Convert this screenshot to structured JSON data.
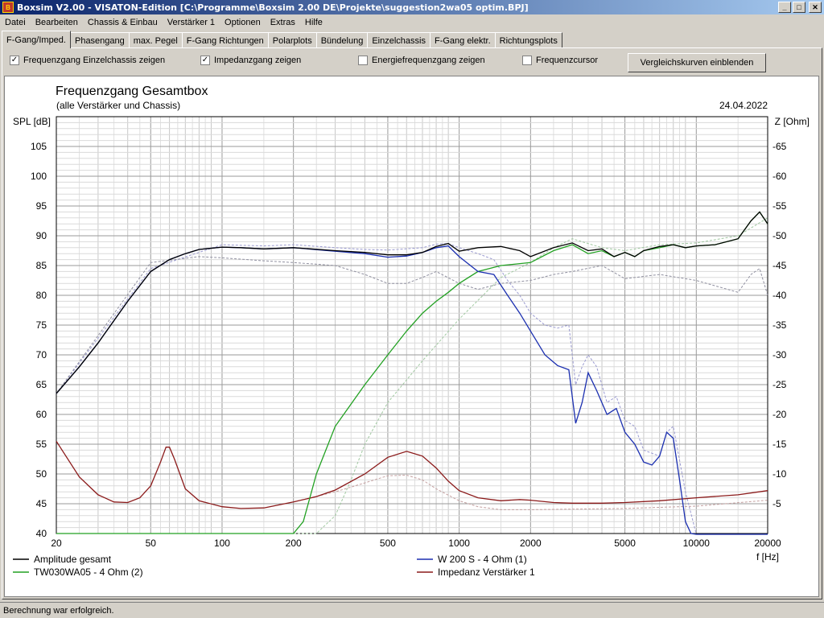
{
  "window": {
    "title": "Boxsim V2.00 - VISATON-Edition [C:\\Programme\\Boxsim 2.00 DE\\Projekte\\suggestion2wa05 optim.BPJ]",
    "minimize": "_",
    "maximize": "□",
    "close": "✕"
  },
  "menu": [
    "Datei",
    "Bearbeiten",
    "Chassis & Einbau",
    "Verstärker 1",
    "Optionen",
    "Extras",
    "Hilfe"
  ],
  "tabs": [
    "F-Gang/Imped.",
    "Phasengang",
    "max. Pegel",
    "F-Gang Richtungen",
    "Polarplots",
    "Bündelung",
    "Einzelchassis",
    "F-Gang elektr.",
    "Richtungsplots"
  ],
  "options": {
    "show_driver_freq": {
      "label": "Frequenzgang Einzelchassis zeigen",
      "checked": true
    },
    "show_impedance": {
      "label": "Impedanzgang zeigen",
      "checked": true
    },
    "show_energy": {
      "label": "Energiefrequenzgang zeigen",
      "checked": false
    },
    "freq_cursor": {
      "label": "Frequenzcursor",
      "checked": false
    },
    "compare_button": "Vergleichskurven einblenden"
  },
  "status": "Berechnung war erfolgreich.",
  "chart_data": {
    "type": "line",
    "title": "Frequenzgang Gesamtbox",
    "subtitle": "(alle Verstärker und Chassis)",
    "date": "24.04.2022",
    "ylabel_left": "SPL [dB]",
    "ylabel_right": "Z [Ohm]",
    "xlabel": "f [Hz]",
    "xscale": "log",
    "xlim": [
      20,
      20000
    ],
    "ylim_left": [
      40,
      110
    ],
    "ylim_right": [
      0,
      70
    ],
    "x_ticks": [
      20,
      50,
      100,
      200,
      500,
      1000,
      2000,
      5000,
      10000,
      20000
    ],
    "y_ticks_left": [
      40,
      45,
      50,
      55,
      60,
      65,
      70,
      75,
      80,
      85,
      90,
      95,
      100,
      105
    ],
    "y_ticks_right": [
      5,
      10,
      15,
      20,
      25,
      30,
      35,
      40,
      45,
      50,
      55,
      60,
      65
    ],
    "grid": true,
    "legend_position": "bottom",
    "series": [
      {
        "name": "Amplitude gesamt",
        "color": "#000000",
        "axis": "left",
        "x": [
          20,
          25,
          30,
          40,
          50,
          60,
          70,
          80,
          100,
          120,
          150,
          200,
          300,
          400,
          500,
          600,
          700,
          800,
          900,
          1000,
          1200,
          1500,
          1800,
          2000,
          2500,
          3000,
          3500,
          4000,
          4500,
          5000,
          5500,
          6000,
          7000,
          8000,
          9000,
          10000,
          12000,
          15000,
          17000,
          18500,
          20000
        ],
        "y": [
          63.5,
          68,
          72,
          79,
          84,
          86,
          87,
          87.7,
          88.1,
          88,
          87.8,
          88,
          87.5,
          87.2,
          86.8,
          86.8,
          87.2,
          88.2,
          88.7,
          87.4,
          88,
          88.2,
          87.5,
          86.5,
          88,
          88.8,
          87.5,
          87.8,
          86.5,
          87.2,
          86.5,
          87.5,
          88.2,
          88.5,
          88,
          88.3,
          88.5,
          89.5,
          92.5,
          94,
          92
        ]
      },
      {
        "name": "W 200 S - 4 Ohm (1)",
        "color": "#1b2fb0",
        "axis": "left",
        "x": [
          20,
          25,
          30,
          40,
          50,
          60,
          70,
          80,
          100,
          120,
          150,
          200,
          300,
          400,
          500,
          600,
          700,
          800,
          900,
          1000,
          1200,
          1400,
          1600,
          1800,
          2000,
          2300,
          2600,
          2900,
          3100,
          3300,
          3500,
          3800,
          4200,
          4600,
          5000,
          5500,
          6000,
          6500,
          7000,
          7500,
          8000,
          8500,
          9000,
          9500,
          10000,
          11000,
          12000,
          15000,
          20000
        ],
        "y": [
          63.5,
          68,
          72,
          79,
          84,
          86,
          87,
          87.7,
          88.1,
          88,
          87.8,
          88,
          87.4,
          87,
          86.4,
          86.6,
          87.2,
          88,
          88.3,
          86.5,
          84,
          83.5,
          80,
          77,
          74,
          70,
          68.2,
          67.5,
          58.5,
          62,
          67,
          64,
          60,
          61,
          57,
          55,
          52,
          51.5,
          53,
          57,
          56,
          49,
          42,
          40,
          39.5,
          38,
          38,
          38,
          38
        ]
      },
      {
        "name": "TW030WA05 - 4 Ohm (2)",
        "color": "#22a122",
        "axis": "left",
        "x": [
          20,
          150,
          200,
          220,
          250,
          300,
          400,
          500,
          600,
          700,
          800,
          900,
          1000,
          1200,
          1500,
          2000,
          2500,
          3000,
          3500,
          4000,
          4500,
          5000,
          5500,
          6000,
          7000,
          8000,
          9000,
          10000,
          12000,
          15000,
          17000,
          18500,
          20000
        ],
        "y": [
          40,
          40,
          40,
          42,
          50,
          58,
          65,
          70,
          74,
          77,
          79,
          80.5,
          82,
          84,
          85,
          85.5,
          87.5,
          88.5,
          87,
          87.5,
          86.5,
          87.2,
          86.5,
          87.5,
          88,
          88.5,
          88,
          88.3,
          88.5,
          89.5,
          92.5,
          94,
          92
        ]
      },
      {
        "name": "Impedanz Verstärker 1",
        "color": "#8b1a1a",
        "axis": "right",
        "x": [
          20,
          25,
          30,
          35,
          40,
          45,
          50,
          55,
          58,
          60,
          63,
          70,
          80,
          100,
          120,
          150,
          200,
          250,
          300,
          400,
          500,
          600,
          700,
          800,
          900,
          1000,
          1200,
          1500,
          1800,
          2000,
          2500,
          3000,
          4000,
          5000,
          7000,
          10000,
          15000,
          20000
        ],
        "y": [
          15.5,
          9.5,
          6.5,
          5.3,
          5.2,
          6,
          8,
          12,
          14.5,
          14.5,
          12.5,
          7.5,
          5.5,
          4.5,
          4.2,
          4.3,
          5.3,
          6.2,
          7.3,
          10,
          12.8,
          13.8,
          13,
          11,
          8.8,
          7.2,
          6,
          5.5,
          5.7,
          5.6,
          5.2,
          5.1,
          5.1,
          5.2,
          5.5,
          6,
          6.5,
          7.2
        ]
      }
    ],
    "comparison_curves": [
      {
        "name": "",
        "color": "#9a9ad0",
        "axis": "left",
        "x": [
          20,
          50,
          100,
          150,
          200,
          300,
          400,
          500,
          700,
          800,
          900,
          1000,
          1200,
          1400,
          1600,
          1800,
          2000,
          2300,
          2600,
          2900,
          3100,
          3300,
          3500,
          3800,
          4200,
          4600,
          5000,
          5500,
          6000,
          7000,
          7500,
          8000,
          9000,
          10000,
          12000,
          20000
        ],
        "y": [
          63.5,
          84.5,
          88.5,
          88.3,
          88.5,
          88,
          87.7,
          87.6,
          88,
          88.6,
          88.7,
          88,
          87,
          86,
          82.5,
          80,
          77,
          75,
          74.5,
          75,
          65,
          68,
          70,
          68,
          62,
          63,
          59,
          58,
          54,
          53,
          57,
          58,
          47,
          39,
          38,
          38
        ]
      },
      {
        "name": "",
        "color": "#a0c8a0",
        "axis": "left",
        "x": [
          20,
          250,
          300,
          350,
          400,
          500,
          700,
          1000,
          1500,
          2000,
          2500,
          3000,
          4000,
          5000,
          7000,
          10000,
          15000,
          20000
        ],
        "y": [
          40,
          40,
          43,
          49,
          55,
          62,
          69,
          76,
          83,
          85.5,
          88,
          89.5,
          88,
          87.5,
          88.5,
          88.8,
          90,
          93
        ]
      },
      {
        "name": "",
        "color": "#9090a0",
        "axis": "left",
        "x": [
          20,
          50,
          80,
          100,
          150,
          200,
          300,
          400,
          500,
          600,
          700,
          800,
          1000,
          1200,
          1500,
          2000,
          2500,
          3000,
          4000,
          5000,
          7000,
          10000,
          15000,
          17000,
          18500,
          20000
        ],
        "y": [
          63.5,
          85.5,
          86.5,
          86.3,
          85.8,
          85.5,
          85,
          83.5,
          82,
          82,
          83,
          84,
          82,
          81,
          82,
          82.5,
          83.5,
          84,
          85,
          82.8,
          83.5,
          82.5,
          80.5,
          83.5,
          84.5,
          80
        ]
      },
      {
        "name": "",
        "color": "#c4a0a0",
        "axis": "right",
        "x": [
          200,
          300,
          400,
          500,
          600,
          700,
          800,
          1000,
          1200,
          1500,
          2000,
          3000,
          5000,
          10000,
          20000
        ],
        "y": [
          5.3,
          7,
          8.5,
          9.7,
          9.8,
          9,
          7.5,
          5.5,
          4.5,
          4,
          4,
          4.1,
          4.2,
          4.6,
          5.6
        ]
      }
    ]
  }
}
